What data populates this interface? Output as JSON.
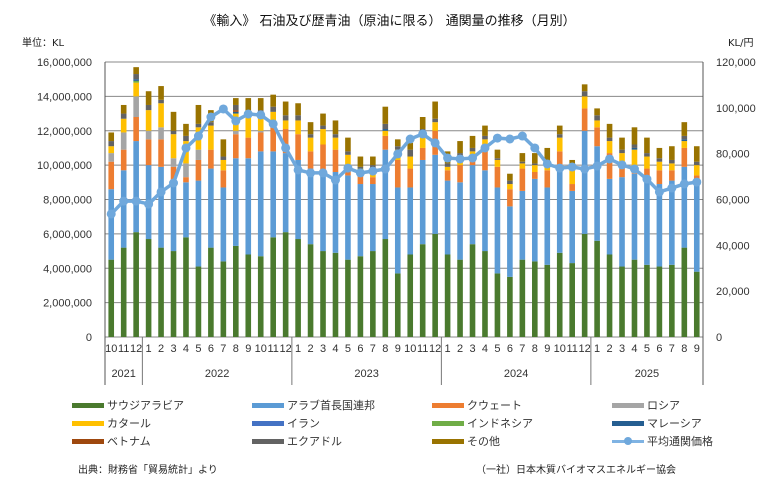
{
  "title": "《輸入》 石油及び歴青油（原油に限る） 通関量の推移（月別）",
  "unit_left": "単位：KL",
  "unit_right": "KL/円",
  "source": "出典：財務省「貿易統計」より",
  "credit": "（一社）日本木質バイオマスエネルギー協会",
  "chart_data": {
    "type": "bar",
    "stacked": true,
    "title": "《輸入》 石油及び歴青油（原油に限る） 通関量の推移（月別）",
    "xlabel": "",
    "ylabel": "単位：KL",
    "y2label": "KL/円",
    "ylim": [
      0,
      16000000
    ],
    "y2lim": [
      0,
      120000
    ],
    "yticks": [
      "0",
      "2,000,000",
      "4,000,000",
      "6,000,000",
      "8,000,000",
      "10,000,000",
      "12,000,000",
      "14,000,000",
      "16,000,000"
    ],
    "y2ticks": [
      "0",
      "20,000",
      "40,000",
      "60,000",
      "80,000",
      "100,000",
      "120,000"
    ],
    "grid": true,
    "legend_position": "bottom",
    "years": [
      {
        "label": "2021",
        "months": 3
      },
      {
        "label": "2022",
        "months": 12
      },
      {
        "label": "2023",
        "months": 12
      },
      {
        "label": "2024",
        "months": 12
      },
      {
        "label": "2025",
        "months": 9
      }
    ],
    "categories": [
      "10",
      "11",
      "12",
      "1",
      "2",
      "3",
      "4",
      "5",
      "6",
      "7",
      "8",
      "9",
      "10",
      "11",
      "12",
      "1",
      "2",
      "3",
      "4",
      "5",
      "6",
      "7",
      "8",
      "9",
      "10",
      "11",
      "12",
      "1",
      "2",
      "3",
      "4",
      "5",
      "6",
      "7",
      "8",
      "9",
      "10",
      "11",
      "12",
      "1",
      "2",
      "3",
      "4",
      "5",
      "6",
      "7",
      "8",
      "9"
    ],
    "series": [
      {
        "name": "サウジアラビア",
        "color": "#4a7a2e",
        "values": [
          4500000,
          5200000,
          6100000,
          5700000,
          5200000,
          5000000,
          5800000,
          4100000,
          5200000,
          4400000,
          5300000,
          4800000,
          4700000,
          5800000,
          6100000,
          5700000,
          5400000,
          5000000,
          4900000,
          4500000,
          4700000,
          5000000,
          5700000,
          3700000,
          4800000,
          5400000,
          6000000,
          4800000,
          4500000,
          5400000,
          5000000,
          3700000,
          3500000,
          4500000,
          4400000,
          4200000,
          4900000,
          4300000,
          6000000,
          5600000,
          4800000,
          4100000,
          4500000,
          4200000,
          4100000,
          4200000,
          5200000,
          3800000
        ]
      },
      {
        "name": "アラブ首長国連邦",
        "color": "#5b9bd5",
        "values": [
          4100000,
          4500000,
          5300000,
          4300000,
          4700000,
          4000000,
          3200000,
          5000000,
          4600000,
          4300000,
          5100000,
          5600000,
          6100000,
          5000000,
          4600000,
          4600000,
          4400000,
          4500000,
          4700000,
          4900000,
          4200000,
          3900000,
          5200000,
          5000000,
          3900000,
          4900000,
          4600000,
          4300000,
          4500000,
          4600000,
          4700000,
          5000000,
          4100000,
          4000000,
          4800000,
          4500000,
          5100000,
          4200000,
          6000000,
          5500000,
          4400000,
          5200000,
          5000000,
          5000000,
          4800000,
          4900000,
          4700000,
          5200000
        ]
      },
      {
        "name": "クウェート",
        "color": "#ed7d31",
        "values": [
          1600000,
          1200000,
          1400000,
          1500000,
          1600000,
          900000,
          300000,
          1200000,
          1100000,
          1000000,
          1400000,
          1200000,
          1100000,
          1500000,
          1400000,
          1500000,
          1000000,
          1700000,
          1300000,
          500000,
          500000,
          400000,
          800000,
          1600000,
          1100000,
          700000,
          1400000,
          600000,
          1000000,
          300000,
          1500000,
          1200000,
          1000000,
          1300000,
          400000,
          1000000,
          800000,
          400000,
          1300000,
          1100000,
          1500000,
          900000,
          300000,
          600000,
          800000,
          600000,
          1100000,
          400000
        ]
      },
      {
        "name": "ロシア",
        "color": "#a5a5a5",
        "values": [
          500000,
          1000000,
          1200000,
          500000,
          700000,
          500000,
          800000,
          600000,
          0,
          0,
          200000,
          0,
          100000,
          0,
          0,
          0,
          0,
          0,
          0,
          0,
          0,
          0,
          0,
          0,
          0,
          0,
          0,
          0,
          0,
          0,
          0,
          0,
          0,
          0,
          0,
          0,
          0,
          0,
          0,
          0,
          0,
          0,
          0,
          0,
          0,
          0,
          0,
          0
        ]
      },
      {
        "name": "カタール",
        "color": "#ffc000",
        "values": [
          400000,
          800000,
          800000,
          1200000,
          1400000,
          1400000,
          1300000,
          1300000,
          1400000,
          600000,
          1000000,
          1200000,
          900000,
          800000,
          500000,
          800000,
          800000,
          900000,
          700000,
          700000,
          300000,
          500000,
          300000,
          600000,
          700000,
          800000,
          500000,
          200000,
          500000,
          500000,
          300000,
          400000,
          300000,
          300000,
          400000,
          500000,
          800000,
          800000,
          700000,
          400000,
          700000,
          500000,
          1100000,
          700000,
          500000,
          400000,
          400000,
          600000
        ]
      },
      {
        "name": "イラン",
        "color": "#4472c4",
        "values": [
          0,
          0,
          0,
          0,
          0,
          0,
          0,
          0,
          0,
          0,
          0,
          0,
          0,
          0,
          0,
          0,
          0,
          0,
          0,
          0,
          0,
          0,
          0,
          0,
          0,
          0,
          0,
          0,
          0,
          0,
          0,
          0,
          0,
          0,
          0,
          0,
          0,
          0,
          0,
          0,
          0,
          0,
          0,
          0,
          0,
          0,
          0,
          0
        ]
      },
      {
        "name": "インドネシア",
        "color": "#70ad47",
        "values": [
          0,
          0,
          100000,
          0,
          0,
          0,
          0,
          0,
          0,
          0,
          0,
          0,
          0,
          0,
          0,
          0,
          0,
          0,
          0,
          0,
          100000,
          0,
          0,
          0,
          0,
          0,
          0,
          0,
          0,
          0,
          0,
          0,
          0,
          0,
          0,
          0,
          0,
          0,
          0,
          0,
          0,
          0,
          0,
          0,
          0,
          0,
          0,
          0
        ]
      },
      {
        "name": "マレーシア",
        "color": "#255e91",
        "values": [
          0,
          0,
          100000,
          0,
          0,
          0,
          0,
          0,
          0,
          0,
          100000,
          0,
          0,
          0,
          0,
          0,
          0,
          0,
          0,
          0,
          0,
          0,
          100000,
          0,
          0,
          0,
          0,
          0,
          0,
          0,
          0,
          0,
          0,
          0,
          0,
          0,
          0,
          0,
          0,
          0,
          0,
          0,
          100000,
          0,
          0,
          0,
          100000,
          0
        ]
      },
      {
        "name": "ベトナム",
        "color": "#9e480e",
        "values": [
          0,
          0,
          0,
          0,
          0,
          0,
          0,
          0,
          0,
          0,
          100000,
          0,
          0,
          0,
          0,
          0,
          0,
          0,
          0,
          0,
          0,
          0,
          0,
          0,
          0,
          0,
          0,
          0,
          0,
          0,
          0,
          0,
          0,
          0,
          0,
          0,
          0,
          0,
          0,
          0,
          0,
          0,
          0,
          0,
          0,
          0,
          0,
          0
        ]
      },
      {
        "name": "エクアドル",
        "color": "#636363",
        "values": [
          300000,
          300000,
          300000,
          300000,
          200000,
          200000,
          300000,
          200000,
          200000,
          200000,
          300000,
          300000,
          300000,
          300000,
          300000,
          300000,
          200000,
          200000,
          200000,
          200000,
          100000,
          200000,
          300000,
          200000,
          400000,
          300000,
          200000,
          200000,
          200000,
          200000,
          200000,
          100000,
          200000,
          100000,
          100000,
          100000,
          200000,
          100000,
          300000,
          300000,
          200000,
          200000,
          200000,
          200000,
          200000,
          200000,
          200000,
          200000
        ]
      },
      {
        "name": "その他",
        "color": "#997300",
        "values": [
          500000,
          500000,
          400000,
          800000,
          800000,
          1100000,
          700000,
          1100000,
          700000,
          1000000,
          400000,
          800000,
          700000,
          700000,
          800000,
          700000,
          700000,
          700000,
          800000,
          800000,
          600000,
          500000,
          1000000,
          400000,
          400000,
          700000,
          1000000,
          700000,
          700000,
          700000,
          600000,
          500000,
          400000,
          500000,
          600000,
          700000,
          500000,
          500000,
          400000,
          400000,
          800000,
          700000,
          1000000,
          900000,
          600000,
          800000,
          800000,
          900000
        ]
      }
    ],
    "line": {
      "name": "平均通関価格",
      "axis": "right",
      "color": "#6fa8dc",
      "values": [
        53700,
        59300,
        59300,
        58000,
        63300,
        67200,
        82500,
        87700,
        96000,
        99500,
        94300,
        97300,
        96900,
        93000,
        82500,
        72900,
        71600,
        71600,
        68500,
        73700,
        71600,
        72400,
        73300,
        79900,
        86400,
        88600,
        84700,
        78100,
        77700,
        78100,
        82500,
        86800,
        86400,
        87700,
        82500,
        75500,
        73700,
        74200,
        73300,
        74600,
        77700,
        75100,
        73300,
        68900,
        63300,
        65000,
        66800,
        67600
      ]
    }
  }
}
